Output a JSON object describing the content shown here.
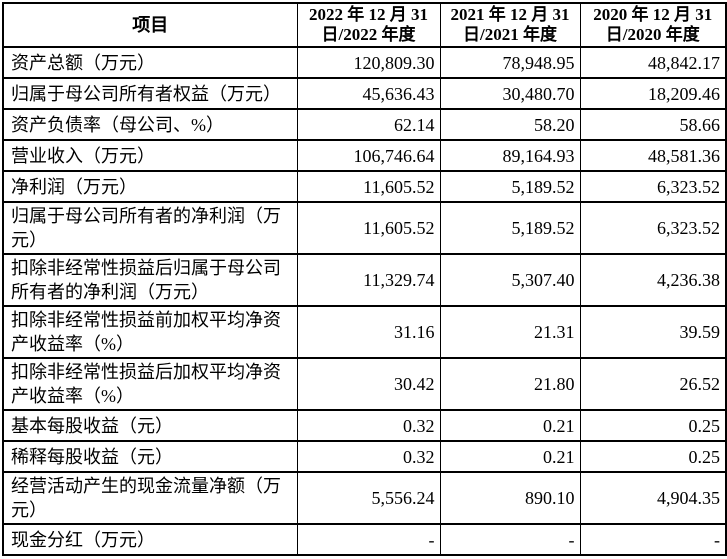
{
  "colors": {
    "page_background": "#ffffff",
    "border": "#000000",
    "text": "#000000"
  },
  "table": {
    "header": {
      "item": "项目",
      "periods": [
        {
          "line1": "2022 年 12 月 31",
          "line2": "日/2022 年度"
        },
        {
          "line1": "2021 年 12 月 31",
          "line2": "日/2021 年度"
        },
        {
          "line1": "2020 年 12 月 31",
          "line2": "日/2020 年度"
        }
      ]
    },
    "rows": [
      {
        "label": "资产总额（万元）",
        "values": [
          "120,809.30",
          "78,948.95",
          "48,842.17"
        ]
      },
      {
        "label": "归属于母公司所有者权益（万元）",
        "values": [
          "45,636.43",
          "30,480.70",
          "18,209.46"
        ]
      },
      {
        "label": "资产负债率（母公司、%）",
        "values": [
          "62.14",
          "58.20",
          "58.66"
        ]
      },
      {
        "label": "营业收入（万元）",
        "values": [
          "106,746.64",
          "89,164.93",
          "48,581.36"
        ]
      },
      {
        "label": "净利润（万元）",
        "values": [
          "11,605.52",
          "5,189.52",
          "6,323.52"
        ]
      },
      {
        "label": "归属于母公司所有者的净利润（万元）",
        "values": [
          "11,605.52",
          "5,189.52",
          "6,323.52"
        ]
      },
      {
        "label": "扣除非经常性损益后归属于母公司所有者的净利润（万元）",
        "values": [
          "11,329.74",
          "5,307.40",
          "4,236.38"
        ]
      },
      {
        "label": "扣除非经常性损益前加权平均净资产收益率（%）",
        "values": [
          "31.16",
          "21.31",
          "39.59"
        ]
      },
      {
        "label": "扣除非经常性损益后加权平均净资产收益率（%）",
        "values": [
          "30.42",
          "21.80",
          "26.52"
        ]
      },
      {
        "label": "基本每股收益（元）",
        "values": [
          "0.32",
          "0.21",
          "0.25"
        ]
      },
      {
        "label": "稀释每股收益（元）",
        "values": [
          "0.32",
          "0.21",
          "0.25"
        ]
      },
      {
        "label": "经营活动产生的现金流量净额（万元）",
        "values": [
          "5,556.24",
          "890.10",
          "4,904.35"
        ]
      },
      {
        "label": "现金分红（万元）",
        "values": [
          "-",
          "-",
          "-"
        ]
      }
    ]
  }
}
